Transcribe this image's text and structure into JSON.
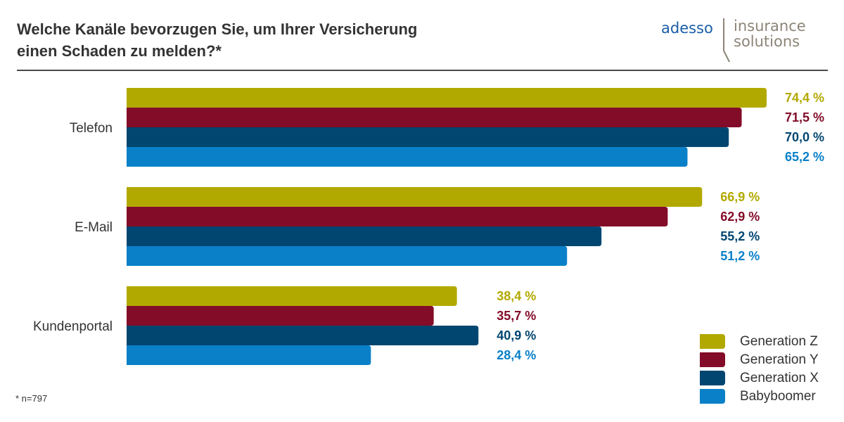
{
  "header": {
    "title_line1": "Welche Kanäle bevorzugen Sie, um Ihrer Versicherung",
    "title_line2": "einen Schaden zu melden?*"
  },
  "logo": {
    "brand": "adesso",
    "product_line1": "insurance",
    "product_line2": "solutions",
    "brand_color": "#1a5ea8",
    "product_color": "#8c8477"
  },
  "footnote": "* n=797",
  "chart_data": {
    "type": "bar",
    "orientation": "horizontal",
    "title": "Welche Kanäle bevorzugen Sie, um Ihrer Versicherung einen Schaden zu melden?*",
    "categories": [
      "Telefon",
      "E-Mail",
      "Kundenportal"
    ],
    "series": [
      {
        "name": "Generation Z",
        "color": "#b2a900",
        "values": [
          74.4,
          66.9,
          38.4
        ],
        "labels": [
          "74,4 %",
          "66,9 %",
          "38,4 %"
        ]
      },
      {
        "name": "Generation Y",
        "color": "#830c28",
        "values": [
          71.5,
          62.9,
          35.7
        ],
        "labels": [
          "71,5 %",
          "62,9 %",
          "35,7 %"
        ]
      },
      {
        "name": "Generation X",
        "color": "#004670",
        "values": [
          70.0,
          55.2,
          40.9
        ],
        "labels": [
          "70,0 %",
          "55,2 %",
          "40,9 %"
        ]
      },
      {
        "name": "Babyboomer",
        "color": "#0a80c8",
        "values": [
          65.2,
          51.2,
          28.4
        ],
        "labels": [
          "65,2 %",
          "51,2 %",
          "28,4 %"
        ]
      }
    ],
    "xlim": [
      0,
      74.4
    ],
    "unit": "%",
    "grid": false,
    "legend_position": "bottom-right"
  }
}
